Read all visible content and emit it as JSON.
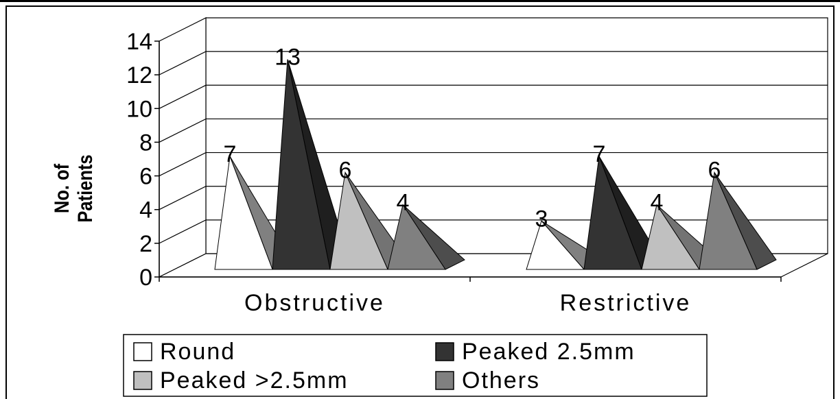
{
  "chart_data": {
    "type": "bar",
    "style": "3d-pyramid",
    "title": "",
    "xlabel": "",
    "ylabel_lines": [
      "No. of",
      "Patients"
    ],
    "ylim": [
      0,
      14
    ],
    "yticks": [
      0,
      2,
      4,
      6,
      8,
      10,
      12,
      14
    ],
    "grid": true,
    "legend_position": "bottom",
    "categories": [
      "Obstructive",
      "Restrictive"
    ],
    "series": [
      {
        "name": "Round",
        "values": [
          7,
          3
        ],
        "color": "#ffffff"
      },
      {
        "name": "Peaked 2.5mm",
        "values": [
          13,
          7
        ],
        "color": "#333333"
      },
      {
        "name": "Peaked >2.5mm",
        "values": [
          6,
          4
        ],
        "color": "#c0c0c0"
      },
      {
        "name": "Others",
        "values": [
          4,
          6
        ],
        "color": "#808080"
      }
    ]
  }
}
